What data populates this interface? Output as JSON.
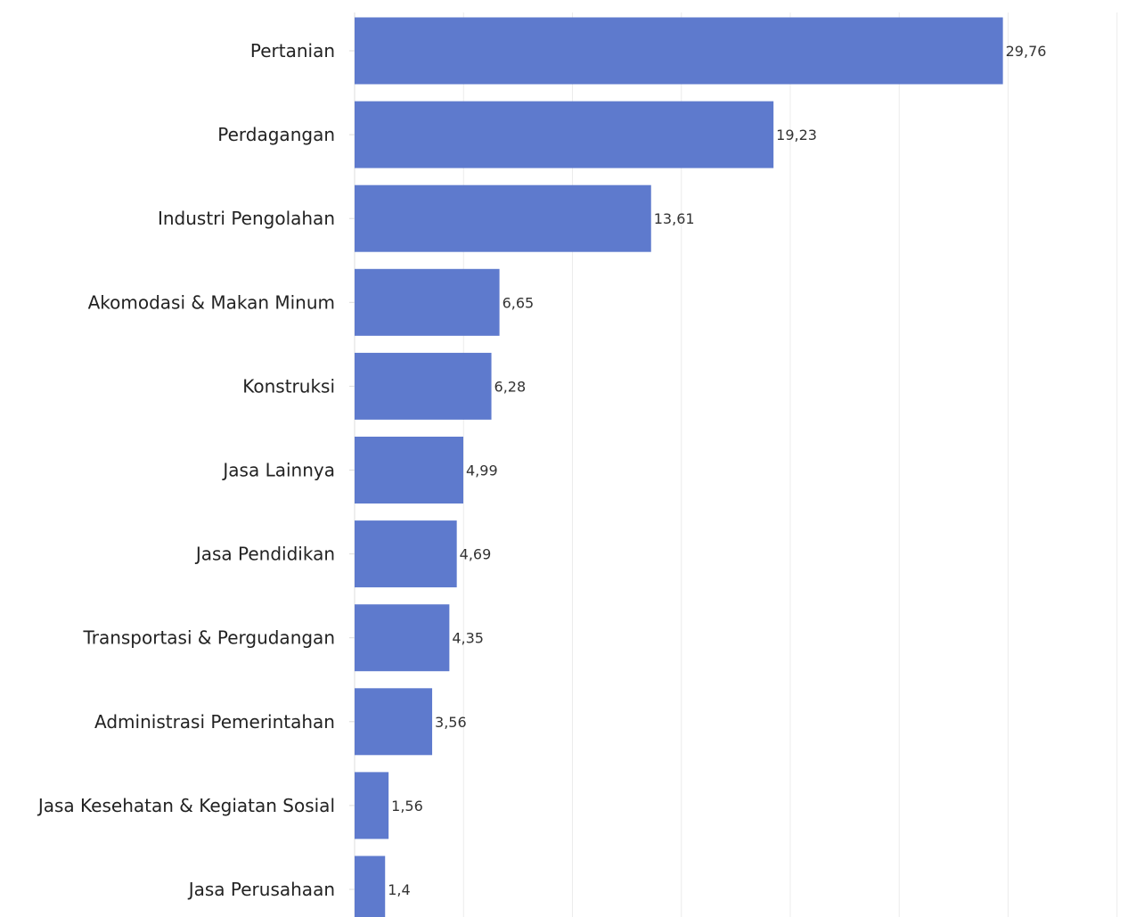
{
  "chart_data": {
    "type": "bar",
    "orientation": "horizontal",
    "categories": [
      "Pertanian",
      "Perdagangan",
      "Industri Pengolahan",
      "Akomodasi & Makan Minum",
      "Konstruksi",
      "Jasa Lainnya",
      "Jasa Pendidikan",
      "Transportasi & Pergudangan",
      "Administrasi Pemerintahan",
      "Jasa Kesehatan & Kegiatan Sosial",
      "Jasa Perusahaan"
    ],
    "values": [
      29.76,
      19.23,
      13.61,
      6.65,
      6.28,
      4.99,
      4.69,
      4.35,
      3.56,
      1.56,
      1.4
    ],
    "value_labels": [
      "29,76",
      "19,23",
      "13,61",
      "6,65",
      "6,28",
      "4,99",
      "4,69",
      "4,35",
      "3,56",
      "1,56",
      "1,4"
    ],
    "xlim": [
      0,
      35
    ],
    "gridlines_x": [
      5,
      10,
      15,
      20,
      25,
      30,
      35
    ],
    "grid": true,
    "bar_color": "#5e7acd",
    "title": "",
    "xlabel": "",
    "ylabel": ""
  }
}
